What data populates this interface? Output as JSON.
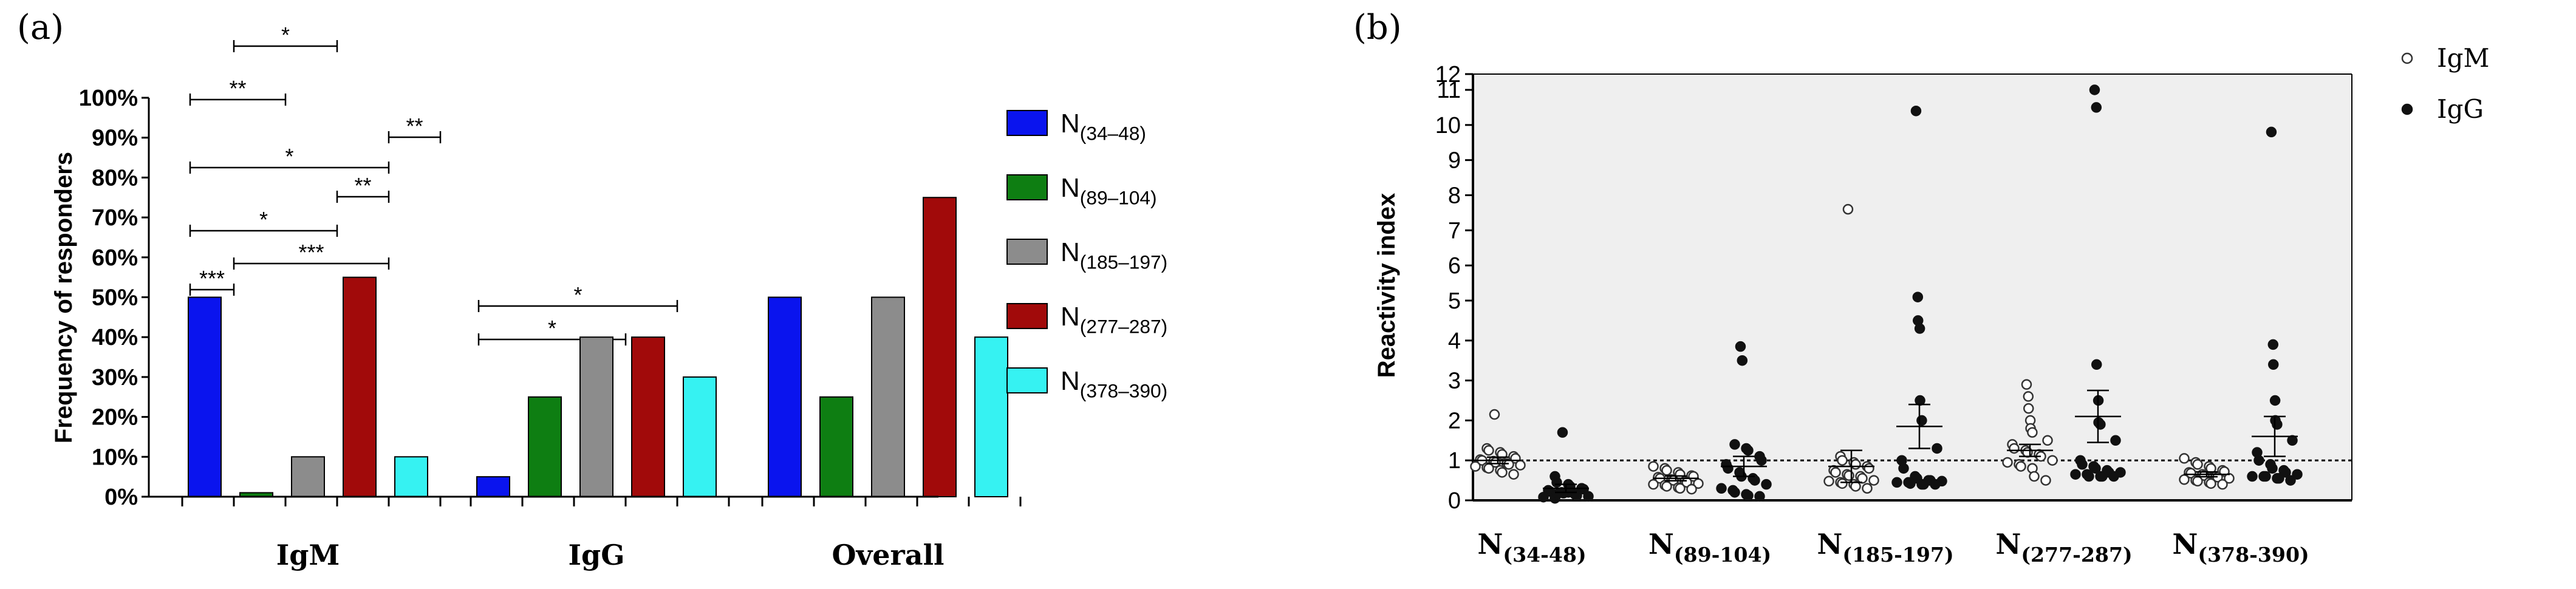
{
  "chart_data": [
    {
      "panel_label": "(a)",
      "type": "bar",
      "ylabel": "Frequency of responders",
      "ylim": [
        0,
        100
      ],
      "yticks": [
        "0%",
        "10%",
        "20%",
        "30%",
        "40%",
        "50%",
        "60%",
        "70%",
        "80%",
        "90%",
        "100%"
      ],
      "categories": [
        "IgM",
        "IgG",
        "Overall"
      ],
      "series": [
        {
          "name": "N(34–48)",
          "base": "N",
          "sub": "(34–48)",
          "color": "#0a14ee",
          "values": [
            50,
            5,
            50
          ]
        },
        {
          "name": "N(89–104)",
          "base": "N",
          "sub": "(89–104)",
          "color": "#0e7e12",
          "values": [
            1,
            25,
            25
          ]
        },
        {
          "name": "N(185–197)",
          "base": "N",
          "sub": "(185–197)",
          "color": "#8c8c8c",
          "values": [
            10,
            40,
            50
          ]
        },
        {
          "name": "N(277–287)",
          "base": "N",
          "sub": "(277–287)",
          "color": "#a10a0a",
          "values": [
            55,
            40,
            75
          ]
        },
        {
          "name": "N(378–390)",
          "base": "N",
          "sub": "(378–390)",
          "color": "#36f2f2",
          "values": [
            10,
            30,
            40
          ]
        }
      ],
      "significance": [
        {
          "group": "IgM",
          "from": 1,
          "to": 3,
          "label": "*"
        },
        {
          "group": "IgM",
          "from": 0,
          "to": 2,
          "label": "**"
        },
        {
          "group": "IgM",
          "from": 0,
          "to": 4,
          "label": "*"
        },
        {
          "group": "IgM",
          "from": 4,
          "to": 5,
          "label": "**"
        },
        {
          "group": "IgM",
          "from": 3,
          "to": 4,
          "label": "**"
        },
        {
          "group": "IgM",
          "from": 0,
          "to": 3,
          "label": "*"
        },
        {
          "group": "IgM",
          "from": 1,
          "to": 4,
          "label": "***"
        },
        {
          "group": "IgM",
          "from": 0,
          "to": 1,
          "label": "***"
        },
        {
          "group": "IgG",
          "from": 0,
          "to": 4,
          "label": "*"
        },
        {
          "group": "IgG",
          "from": 0,
          "to": 3,
          "label": "*"
        }
      ]
    },
    {
      "panel_label": "(b)",
      "type": "scatter",
      "ylabel": "Reactivity index",
      "yticks": [
        "0",
        "1",
        "2",
        "3",
        "4",
        "5",
        "6",
        "7",
        "8",
        "9",
        "10",
        "11",
        "12"
      ],
      "threshold": 1,
      "categories": [
        {
          "base": "N",
          "sub": "(34-48)"
        },
        {
          "base": "N",
          "sub": "(89-104)"
        },
        {
          "base": "N",
          "sub": "(185-197)"
        },
        {
          "base": "N",
          "sub": "(277-287)"
        },
        {
          "base": "N",
          "sub": "(378-390)"
        }
      ],
      "legend": [
        {
          "label": "IgM",
          "marker": "open circle"
        },
        {
          "label": "IgG",
          "marker": "filled circle"
        }
      ],
      "groups": [
        {
          "category": "N(34-48)",
          "isotype": "IgM",
          "mean": 1.0,
          "sem": 0.08,
          "values": [
            2.15,
            1.3,
            1.25,
            1.2,
            1.15,
            1.1,
            1.05,
            1.02,
            1.0,
            0.98,
            0.95,
            0.92,
            0.9,
            0.88,
            0.85,
            0.82,
            0.8,
            0.75,
            0.7,
            0.65
          ]
        },
        {
          "category": "N(34-48)",
          "isotype": "IgG",
          "mean": 0.3,
          "sem": 0.1,
          "values": [
            1.7,
            0.6,
            0.45,
            0.4,
            0.35,
            0.3,
            0.28,
            0.25,
            0.22,
            0.2,
            0.18,
            0.15,
            0.12,
            0.1,
            0.08,
            0.05,
            0.15,
            0.2,
            0.25,
            0.3
          ]
        },
        {
          "category": "N(89-104)",
          "isotype": "IgM",
          "mean": 0.55,
          "sem": 0.06,
          "values": [
            0.85,
            0.8,
            0.75,
            0.7,
            0.65,
            0.62,
            0.6,
            0.58,
            0.55,
            0.52,
            0.5,
            0.48,
            0.45,
            0.42,
            0.4,
            0.38,
            0.35,
            0.32,
            0.3,
            0.28
          ]
        },
        {
          "category": "N(89-104)",
          "isotype": "IgG",
          "mean": 0.85,
          "sem": 0.25,
          "values": [
            3.85,
            3.5,
            1.4,
            1.3,
            1.25,
            1.1,
            1.0,
            0.9,
            0.8,
            0.7,
            0.6,
            0.55,
            0.5,
            0.4,
            0.3,
            0.25,
            0.2,
            0.15,
            0.12,
            0.1
          ]
        },
        {
          "category": "N(185-197)",
          "isotype": "IgM",
          "mean": 0.85,
          "sem": 0.4,
          "values": [
            7.6,
            1.1,
            1.0,
            0.95,
            0.9,
            0.85,
            0.8,
            0.75,
            0.7,
            0.65,
            0.62,
            0.6,
            0.55,
            0.5,
            0.48,
            0.45,
            0.42,
            0.4,
            0.35,
            0.3
          ]
        },
        {
          "category": "N(185-197)",
          "isotype": "IgG",
          "mean": 1.85,
          "sem": 0.55,
          "values": [
            10.4,
            5.1,
            4.5,
            4.3,
            2.5,
            2.0,
            1.3,
            1.0,
            0.8,
            0.6,
            0.55,
            0.5,
            0.5,
            0.48,
            0.45,
            0.45,
            0.42,
            0.4,
            0.4,
            0.4
          ]
        },
        {
          "category": "N(277-287)",
          "isotype": "IgM",
          "mean": 1.25,
          "sem": 0.15,
          "values": [
            2.9,
            2.6,
            2.3,
            2.0,
            1.8,
            1.7,
            1.5,
            1.4,
            1.3,
            1.25,
            1.2,
            1.15,
            1.1,
            1.0,
            0.95,
            0.9,
            0.85,
            0.8,
            0.6,
            0.5
          ]
        },
        {
          "category": "N(277-287)",
          "isotype": "IgG",
          "mean": 2.1,
          "sem": 0.65,
          "values": [
            11.0,
            10.5,
            3.4,
            2.5,
            1.95,
            1.9,
            1.5,
            1.0,
            0.9,
            0.85,
            0.8,
            0.75,
            0.7,
            0.7,
            0.65,
            0.65,
            0.6,
            0.6,
            0.6,
            0.6
          ]
        },
        {
          "category": "N(378-390)",
          "isotype": "IgM",
          "mean": 0.65,
          "sem": 0.06,
          "values": [
            1.05,
            0.95,
            0.9,
            0.85,
            0.8,
            0.75,
            0.72,
            0.7,
            0.68,
            0.65,
            0.62,
            0.6,
            0.58,
            0.55,
            0.52,
            0.5,
            0.48,
            0.45,
            0.42,
            0.4
          ]
        },
        {
          "category": "N(378-390)",
          "isotype": "IgG",
          "mean": 1.6,
          "sem": 0.5,
          "values": [
            9.8,
            3.9,
            3.4,
            2.5,
            2.0,
            1.9,
            1.5,
            1.2,
            1.0,
            0.9,
            0.8,
            0.75,
            0.7,
            0.65,
            0.6,
            0.6,
            0.6,
            0.55,
            0.55,
            0.5
          ]
        }
      ]
    }
  ]
}
